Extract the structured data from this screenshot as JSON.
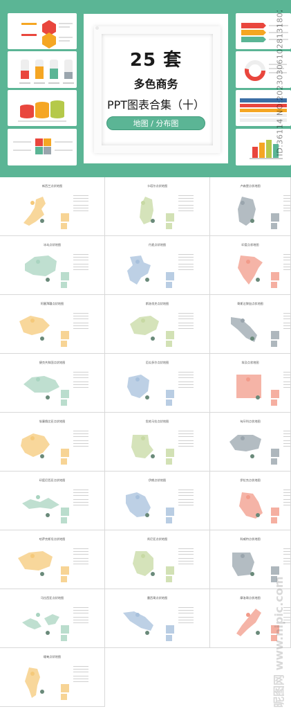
{
  "header": {
    "count": "25 套",
    "subtitle": "多色商务",
    "product": "PPT图表合集（十）",
    "category": "地图 / 分布图",
    "side_watermark": "ID:36114 NO:20230306102813180209",
    "bottom_watermark": "昵图网 www.nipic.com",
    "colors": {
      "banner": "#5bb595",
      "card": "#ffffff"
    }
  },
  "slides": [
    {
      "title": "新西兰点状地图",
      "color": "#f5c97a"
    },
    {
      "title": "卡塔尔点状地图",
      "color": "#c7d9a3"
    },
    {
      "title": "卢森堡点状地图",
      "color": "#9aa5ad"
    },
    {
      "title": "冰岛点状地图",
      "color": "#a9d4c0"
    },
    {
      "title": "丹麦点状地图",
      "color": "#a7c0dc"
    },
    {
      "title": "印度点状地图",
      "color": "#f29b8a"
    },
    {
      "title": "阿塞拜疆点状地图",
      "color": "#f5c97a"
    },
    {
      "title": "斯洛伐克点状地图",
      "color": "#c7d9a3"
    },
    {
      "title": "哥斯达黎加点状地图",
      "color": "#9aa5ad"
    },
    {
      "title": "捷克共和国点状地图",
      "color": "#a9d4c0"
    },
    {
      "title": "厄瓜多尔点状地图",
      "color": "#a7c0dc"
    },
    {
      "title": "埃及点状地图",
      "color": "#f29b8a"
    },
    {
      "title": "埃塞俄比亚点状地图",
      "color": "#f5c97a"
    },
    {
      "title": "危地马拉点状地图",
      "color": "#c7d9a3"
    },
    {
      "title": "匈牙利点状地图",
      "color": "#9aa5ad"
    },
    {
      "title": "印度尼西亚点状地图",
      "color": "#a9d4c0"
    },
    {
      "title": "伊朗点状地图",
      "color": "#a7c0dc"
    },
    {
      "title": "伊拉克点状地图",
      "color": "#f29b8a"
    },
    {
      "title": "哈萨克斯坦点状地图",
      "color": "#f5c97a"
    },
    {
      "title": "肯尼亚点状地图",
      "color": "#c7d9a3"
    },
    {
      "title": "科威特点状地图",
      "color": "#9aa5ad"
    },
    {
      "title": "马拉西亚点状地图",
      "color": "#a9d4c0"
    },
    {
      "title": "墨西哥点状地图",
      "color": "#a7c0dc"
    },
    {
      "title": "摩洛哥点状地图",
      "color": "#f29b8a"
    },
    {
      "title": "缅甸点状地图",
      "color": "#f5c97a"
    }
  ]
}
